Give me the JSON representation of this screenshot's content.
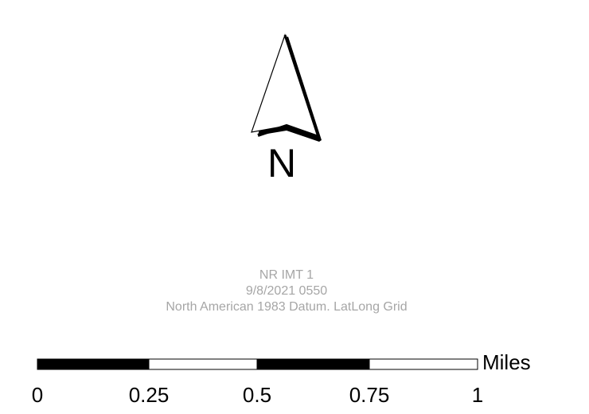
{
  "north_arrow": {
    "letter": "N"
  },
  "map_info": {
    "title": "NR IMT 1",
    "datetime": "9/8/2021 0550",
    "datum": "North American 1983 Datum. LatLong Grid",
    "text_color": "#a6a6a6"
  },
  "scale_bar": {
    "units": "Miles",
    "ticks": [
      "0",
      "0.25",
      "0.5",
      "0.75",
      "1"
    ],
    "segment_pattern": [
      "black",
      "white",
      "black",
      "white"
    ]
  }
}
